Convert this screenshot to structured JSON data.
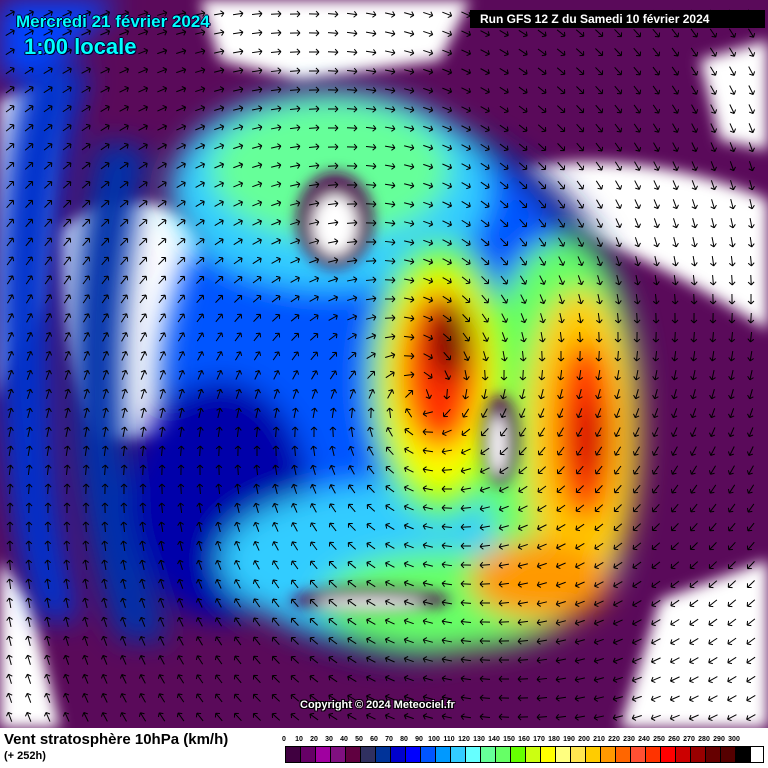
{
  "header": {
    "date": "Mercredi 21 février 2024",
    "time": "1:00 locale",
    "run": "Run GFS 12 Z du Samedi 10 février 2024"
  },
  "copyright": "Copyright © 2024 Meteociel.fr",
  "footer": {
    "product": "Vent stratosphère 10hPa (km/h)",
    "lead_time": "(+ 252h)"
  },
  "legend": {
    "unit": "km/h",
    "ticks": [
      "0",
      "10",
      "20",
      "30",
      "40",
      "50",
      "60",
      "70",
      "80",
      "90",
      "100",
      "110",
      "120",
      "130",
      "140",
      "150",
      "160",
      "170",
      "180",
      "190",
      "200",
      "210",
      "220",
      "230",
      "240",
      "250",
      "260",
      "270",
      "280",
      "290",
      "300"
    ],
    "colors": [
      "#400040",
      "#660066",
      "#a000a0",
      "#801080",
      "#600040",
      "#303060",
      "#003399",
      "#0000cc",
      "#0000ff",
      "#0055ff",
      "#0099ff",
      "#33ccff",
      "#66ffff",
      "#66ff99",
      "#66ff66",
      "#66ff00",
      "#ccff11",
      "#ffff00",
      "#ffff80",
      "#ffe650",
      "#ffcc00",
      "#ff9900",
      "#ff6600",
      "#ff5033",
      "#ff3300",
      "#ff0000",
      "#cc0000",
      "#990000",
      "#660000",
      "#550000",
      "#000000"
    ]
  }
}
